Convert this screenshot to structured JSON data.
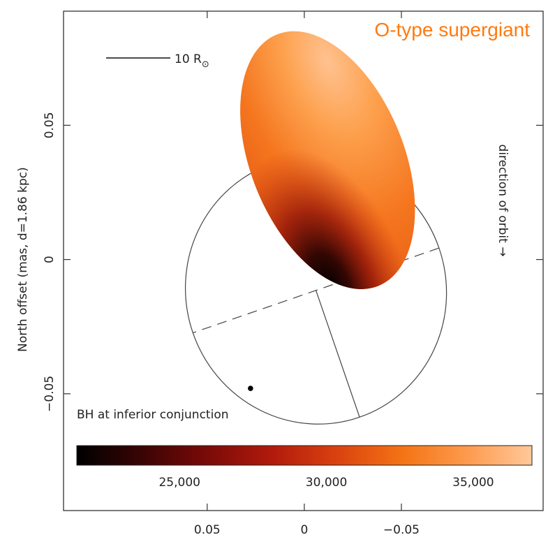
{
  "chart_data": {
    "type": "scatter",
    "title": "O-type supergiant",
    "ylabel": "North offset (mas, d=1.86 kpc)",
    "xlabel": "",
    "xlim": [
      0.124,
      -0.123
    ],
    "ylim": [
      -0.0935,
      0.0925
    ],
    "x_ticks": [
      {
        "value": 0.05,
        "label": "0.05"
      },
      {
        "value": 0,
        "label": "0"
      },
      {
        "value": -0.05,
        "label": "−0.05"
      }
    ],
    "y_ticks": [
      {
        "value": 0.05,
        "label": "0.05"
      },
      {
        "value": 0,
        "label": "0"
      },
      {
        "value": -0.05,
        "label": "−0.05"
      }
    ],
    "scale_bar": {
      "text": "10 R",
      "symbol": "⊙"
    },
    "orientation_label": "direction of orbit →",
    "orbit": {
      "center": [
        -0.006,
        -0.0115
      ],
      "rx": 0.069,
      "ry": 0.0485,
      "rotation_deg": 71
    },
    "bh_point": {
      "x": 0.0277,
      "y": -0.048,
      "label": "BH at inferior conjunction"
    },
    "star": {
      "center_x": -0.012,
      "center_y": 0.037,
      "semi_major": 0.0505,
      "semi_minor": 0.0395
    },
    "colorbar": {
      "label_ticks": [
        {
          "value": 25000,
          "label": "25,000"
        },
        {
          "value": 30000,
          "label": "30,000"
        },
        {
          "value": 35000,
          "label": "35,000"
        }
      ],
      "range": [
        21500,
        37000
      ],
      "colors": [
        "#000000",
        "#3a0404",
        "#7a0a08",
        "#b11a0c",
        "#d9420f",
        "#f47314",
        "#fd9a4e",
        "#ffc89a"
      ]
    },
    "colors": {
      "title": "#ff7a10",
      "axis": "#333333",
      "star_light": "#ffbf86",
      "star_mid": "#ff7a1e",
      "star_dark": "#000000"
    }
  }
}
